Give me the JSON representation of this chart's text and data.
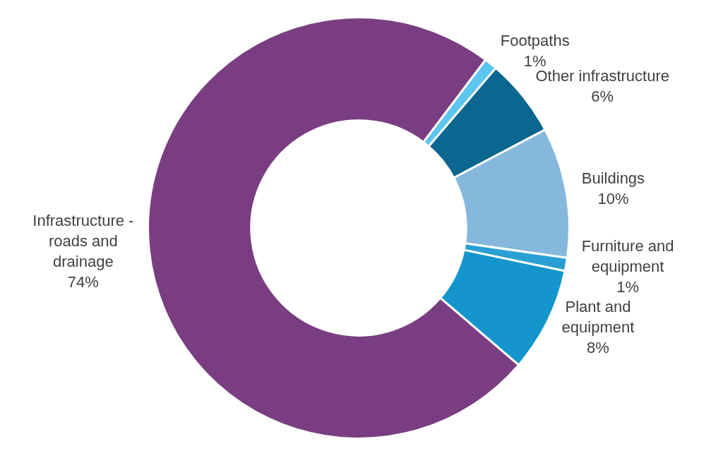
{
  "chart_data": {
    "type": "donut",
    "categories": [
      "Footpaths",
      "Other infrastructure",
      "Buildings",
      "Furniture and equipment",
      "Plant and equipment",
      "Infrastructure - roads and drainage"
    ],
    "values": [
      1,
      6,
      10,
      1,
      8,
      74
    ],
    "value_labels": [
      "1%",
      "6%",
      "10%",
      "1%",
      "8%",
      "74%"
    ],
    "colors": [
      "#5cc6ef",
      "#0b6690",
      "#86b8de",
      "#2a9fd4",
      "#1496cc",
      "#7a3d82"
    ],
    "legend": false
  }
}
